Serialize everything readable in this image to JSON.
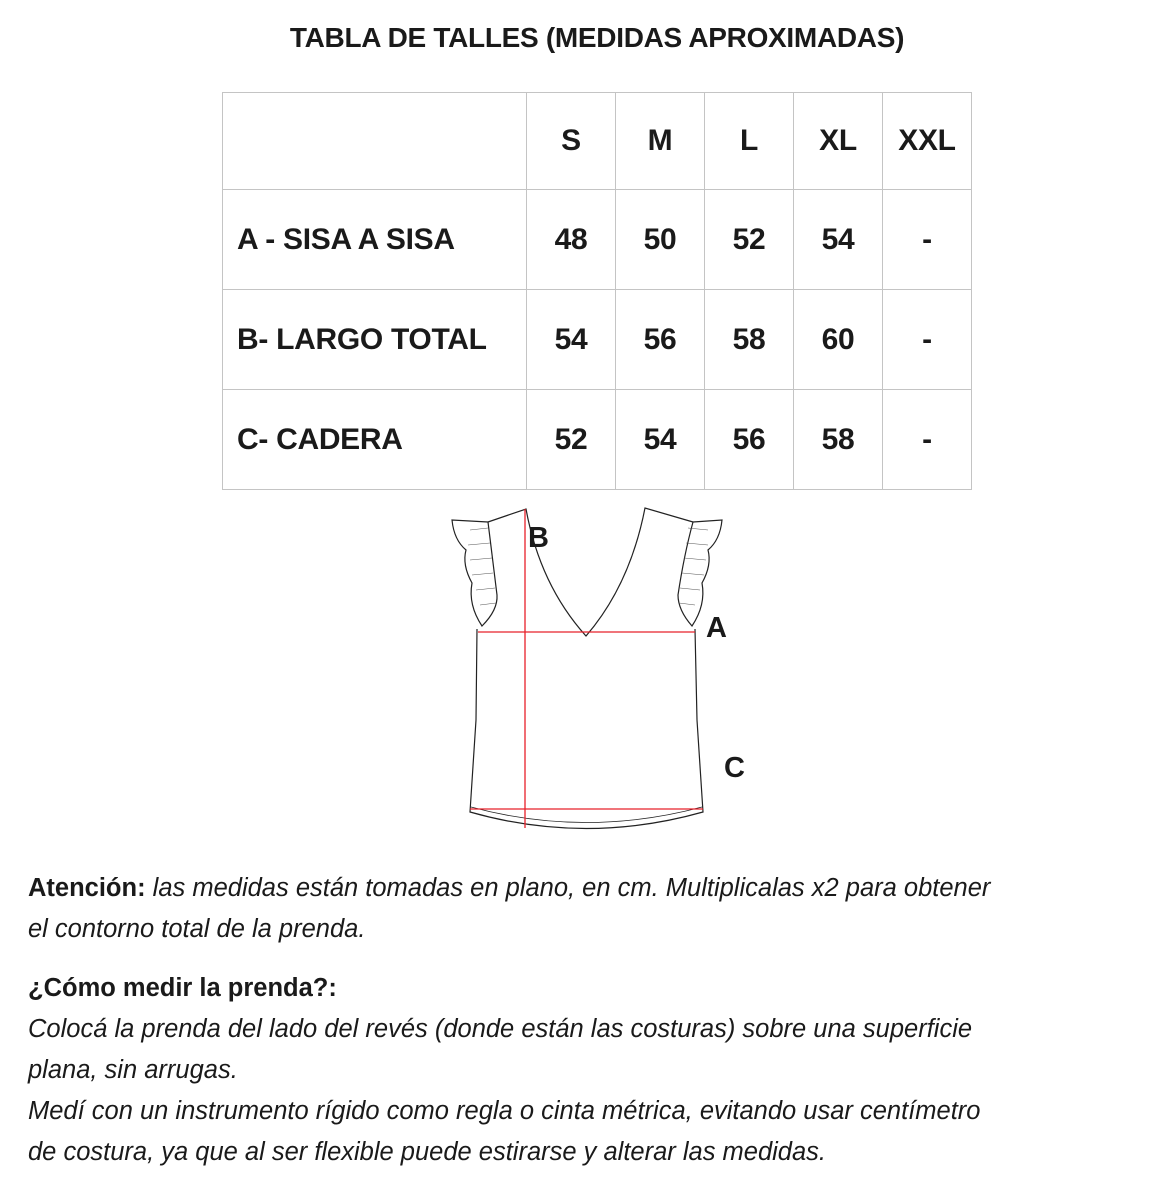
{
  "title": "TABLA DE TALLES (MEDIDAS APROXIMADAS)",
  "table": {
    "headers": [
      "",
      "S",
      "M",
      "L",
      "XL",
      "XXL"
    ],
    "rows": [
      {
        "label": "A - SISA A SISA",
        "values": [
          "48",
          "50",
          "52",
          "54",
          "-"
        ]
      },
      {
        "label": "B- LARGO TOTAL",
        "values": [
          "54",
          "56",
          "58",
          "60",
          "-"
        ]
      },
      {
        "label": "C- CADERA",
        "values": [
          "52",
          "54",
          "56",
          "58",
          "-"
        ]
      }
    ]
  },
  "diagram": {
    "labels": {
      "a": "A",
      "b": "B",
      "c": "C"
    },
    "measure_color": "#e8202a"
  },
  "notes": {
    "attention_label": "Atención:",
    "attention_line1": " las medidas están tomadas en plano, en cm. Multiplicalas x2 para obtener",
    "attention_line2": "el contorno total de la prenda.",
    "how_title": "¿Cómo medir la prenda?:",
    "how_lines": [
      "Colocá la prenda del lado del revés (donde están las costuras) sobre una superficie",
      "plana, sin arrugas.",
      "Medí con un instrumento rígido como regla o cinta métrica, evitando usar centímetro",
      "de costura, ya que al ser flexible puede estirarse y alterar las medidas."
    ]
  }
}
